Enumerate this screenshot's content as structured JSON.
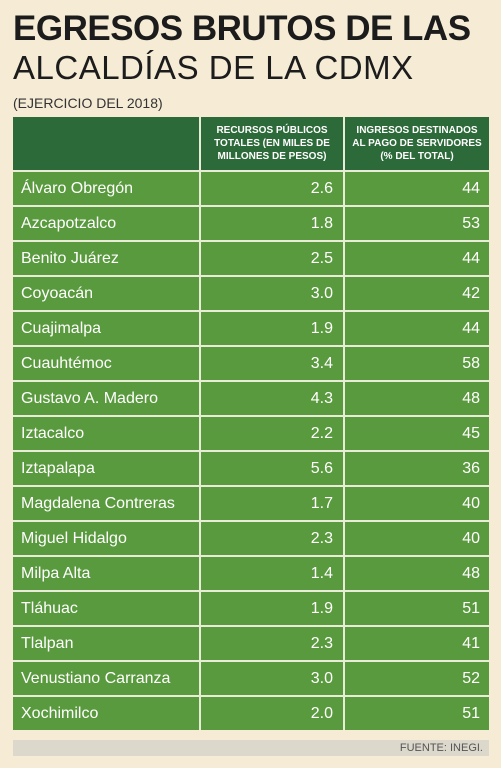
{
  "title_line1": "EGRESOS BRUTOS DE LAS",
  "title_line2": "ALCALDÍAS DE LA CDMX",
  "subtitle": "(EJERCICIO DEL 2018)",
  "table": {
    "headers": [
      "",
      "RECURSOS PÚBLICOS TOTALES (EN MILES DE MILLONES DE PESOS)",
      "INGRESOS DESTINADOS AL PAGO DE SERVIDORES (% DEL TOTAL)"
    ],
    "rows": [
      [
        "Álvaro Obregón",
        "2.6",
        "44"
      ],
      [
        "Azcapotzalco",
        "1.8",
        "53"
      ],
      [
        "Benito Juárez",
        "2.5",
        "44"
      ],
      [
        "Coyoacán",
        "3.0",
        "42"
      ],
      [
        "Cuajimalpa",
        "1.9",
        "44"
      ],
      [
        "Cuauhtémoc",
        "3.4",
        "58"
      ],
      [
        "Gustavo A. Madero",
        "4.3",
        "48"
      ],
      [
        "Iztacalco",
        "2.2",
        "45"
      ],
      [
        "Iztapalapa",
        "5.6",
        "36"
      ],
      [
        "Magdalena Contreras",
        "1.7",
        "40"
      ],
      [
        "Miguel Hidalgo",
        "2.3",
        "40"
      ],
      [
        "Milpa Alta",
        "1.4",
        "48"
      ],
      [
        "Tláhuac",
        "1.9",
        "51"
      ],
      [
        "Tlalpan",
        "2.3",
        "41"
      ],
      [
        "Venustiano Carranza",
        "3.0",
        "52"
      ],
      [
        "Xochimilco",
        "2.0",
        "51"
      ]
    ]
  },
  "source": "FUENTE: INEGI.",
  "colors": {
    "background": "#f6ecd6",
    "header_fill": "#2d6a39",
    "row_fill": "#5a9a3e",
    "grid_line": "#e9edd8"
  }
}
